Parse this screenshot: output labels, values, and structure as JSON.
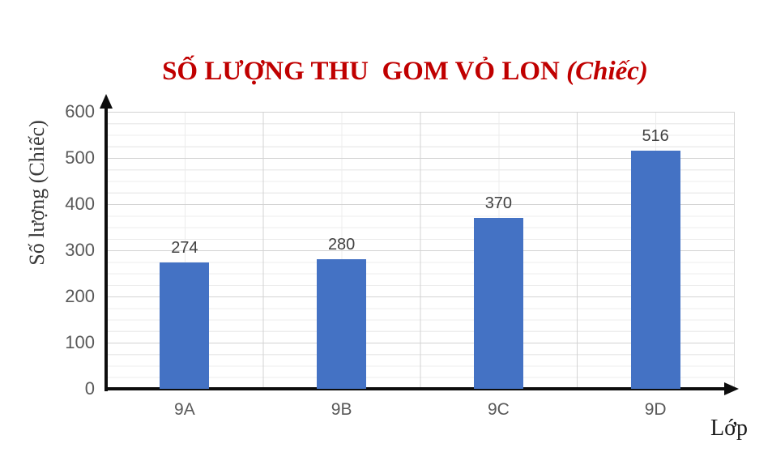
{
  "chart_data": {
    "type": "bar",
    "title": "SỐ LƯỢNG THU  GOM VỎ LON (Chiếc)",
    "title_main": "SỐ LƯỢNG THU  GOM VỎ LON ",
    "title_suffix": "(Chiếc)",
    "xlabel": "Lớp",
    "ylabel": "Số lượng (Chiếc)",
    "categories": [
      "9A",
      "9B",
      "9C",
      "9D"
    ],
    "values": [
      274,
      280,
      370,
      516
    ],
    "data_labels": [
      "274",
      "280",
      "370",
      "516"
    ],
    "ylim": [
      0,
      600
    ],
    "yticks": [
      0,
      100,
      200,
      300,
      400,
      500,
      600
    ],
    "grid": {
      "horizontal_minor_step": 25,
      "horizontal_major_step": 100,
      "vertical_lines": "major at category boundaries, minor at category midpoints"
    },
    "legend": "none",
    "colors": {
      "bar": "#4472C4",
      "title": "#C00000",
      "axis": "#0d0d0d",
      "tick_labels": "#595959",
      "data_labels": "#404040",
      "gridline_major": "#d3d3d3",
      "gridline_minor": "#ececec",
      "background": "#ffffff"
    }
  }
}
